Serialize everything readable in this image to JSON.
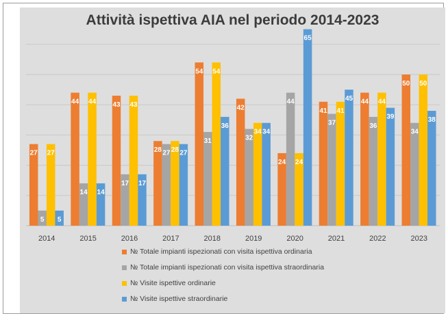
{
  "chart_data": {
    "type": "bar",
    "title": "Attività ispettiva AIA nel periodo 2014-2023",
    "categories": [
      "2014",
      "2015",
      "2016",
      "2017",
      "2018",
      "2019",
      "2020",
      "2021",
      "2022",
      "2023"
    ],
    "series": [
      {
        "name": "№ Totale impianti ispezionati con visita ispettiva ordinaria",
        "color": "#ED7D31",
        "values": [
          27,
          44,
          43,
          28,
          54,
          42,
          24,
          41,
          44,
          50
        ]
      },
      {
        "name": "№ Totale impianti ispezionati con visita ispettiva straordinaria",
        "color": "#A5A5A5",
        "values": [
          5,
          14,
          17,
          27,
          31,
          32,
          44,
          37,
          36,
          34
        ]
      },
      {
        "name": "№  Visite ispettive ordinarie",
        "color": "#FFC000",
        "values": [
          27,
          44,
          43,
          28,
          54,
          34,
          24,
          41,
          44,
          50
        ]
      },
      {
        "name": "№ Visite ispettive straordinarie",
        "color": "#5B9BD5",
        "values": [
          5,
          14,
          17,
          27,
          36,
          34,
          65,
          45,
          39,
          38
        ]
      }
    ],
    "ylim": [
      0,
      65
    ],
    "grid": true,
    "legend_position": "bottom",
    "data_labels": true
  }
}
